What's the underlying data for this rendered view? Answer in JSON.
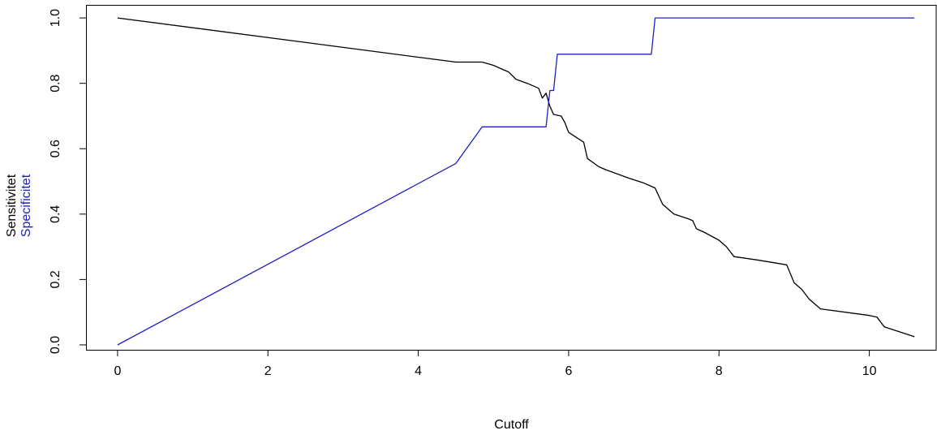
{
  "chart_data": {
    "type": "line",
    "title": "",
    "xlabel": "Cutoff",
    "ylabel_lines": [
      {
        "text": "Sensitivitet",
        "color": "#000000"
      },
      {
        "text": "Specificitet",
        "color": "#2020c0"
      }
    ],
    "xlim": [
      -0.42,
      10.9
    ],
    "ylim": [
      -0.015,
      1.04
    ],
    "x_ticks": [
      {
        "value": 0,
        "label": "0"
      },
      {
        "value": 2,
        "label": "2"
      },
      {
        "value": 4,
        "label": "4"
      },
      {
        "value": 6,
        "label": "6"
      },
      {
        "value": 8,
        "label": "8"
      },
      {
        "value": 10,
        "label": "10"
      }
    ],
    "y_ticks": [
      {
        "value": 0.0,
        "label": "0.0"
      },
      {
        "value": 0.2,
        "label": "0.2"
      },
      {
        "value": 0.4,
        "label": "0.4"
      },
      {
        "value": 0.6,
        "label": "0.6"
      },
      {
        "value": 0.8,
        "label": "0.8"
      },
      {
        "value": 1.0,
        "label": "1.0"
      }
    ],
    "grid": false,
    "series": [
      {
        "name": "Sensitivitet",
        "color": "#000000",
        "points": [
          [
            0,
            1.0
          ],
          [
            4.5,
            0.865
          ],
          [
            4.85,
            0.865
          ],
          [
            5.0,
            0.855
          ],
          [
            5.1,
            0.845
          ],
          [
            5.2,
            0.835
          ],
          [
            5.3,
            0.812
          ],
          [
            5.45,
            0.8
          ],
          [
            5.55,
            0.79
          ],
          [
            5.6,
            0.785
          ],
          [
            5.65,
            0.755
          ],
          [
            5.7,
            0.77
          ],
          [
            5.75,
            0.73
          ],
          [
            5.8,
            0.705
          ],
          [
            5.9,
            0.7
          ],
          [
            5.95,
            0.68
          ],
          [
            6.0,
            0.65
          ],
          [
            6.1,
            0.635
          ],
          [
            6.2,
            0.62
          ],
          [
            6.25,
            0.57
          ],
          [
            6.4,
            0.545
          ],
          [
            6.5,
            0.535
          ],
          [
            6.8,
            0.51
          ],
          [
            7.0,
            0.495
          ],
          [
            7.1,
            0.485
          ],
          [
            7.15,
            0.48
          ],
          [
            7.25,
            0.43
          ],
          [
            7.4,
            0.4
          ],
          [
            7.6,
            0.385
          ],
          [
            7.65,
            0.38
          ],
          [
            7.7,
            0.355
          ],
          [
            7.8,
            0.345
          ],
          [
            8.0,
            0.32
          ],
          [
            8.1,
            0.3
          ],
          [
            8.2,
            0.27
          ],
          [
            8.5,
            0.26
          ],
          [
            8.9,
            0.245
          ],
          [
            9.0,
            0.19
          ],
          [
            9.1,
            0.17
          ],
          [
            9.2,
            0.14
          ],
          [
            9.35,
            0.11
          ],
          [
            10.0,
            0.09
          ],
          [
            10.1,
            0.085
          ],
          [
            10.2,
            0.055
          ],
          [
            10.6,
            0.025
          ]
        ]
      },
      {
        "name": "Specificitet",
        "color": "#2020c0",
        "points": [
          [
            0,
            0.0
          ],
          [
            4.5,
            0.555
          ],
          [
            4.85,
            0.667
          ],
          [
            5.7,
            0.667
          ],
          [
            5.75,
            0.778
          ],
          [
            5.8,
            0.778
          ],
          [
            5.85,
            0.889
          ],
          [
            7.1,
            0.889
          ],
          [
            7.15,
            1.0
          ],
          [
            10.6,
            1.0
          ]
        ]
      }
    ]
  }
}
